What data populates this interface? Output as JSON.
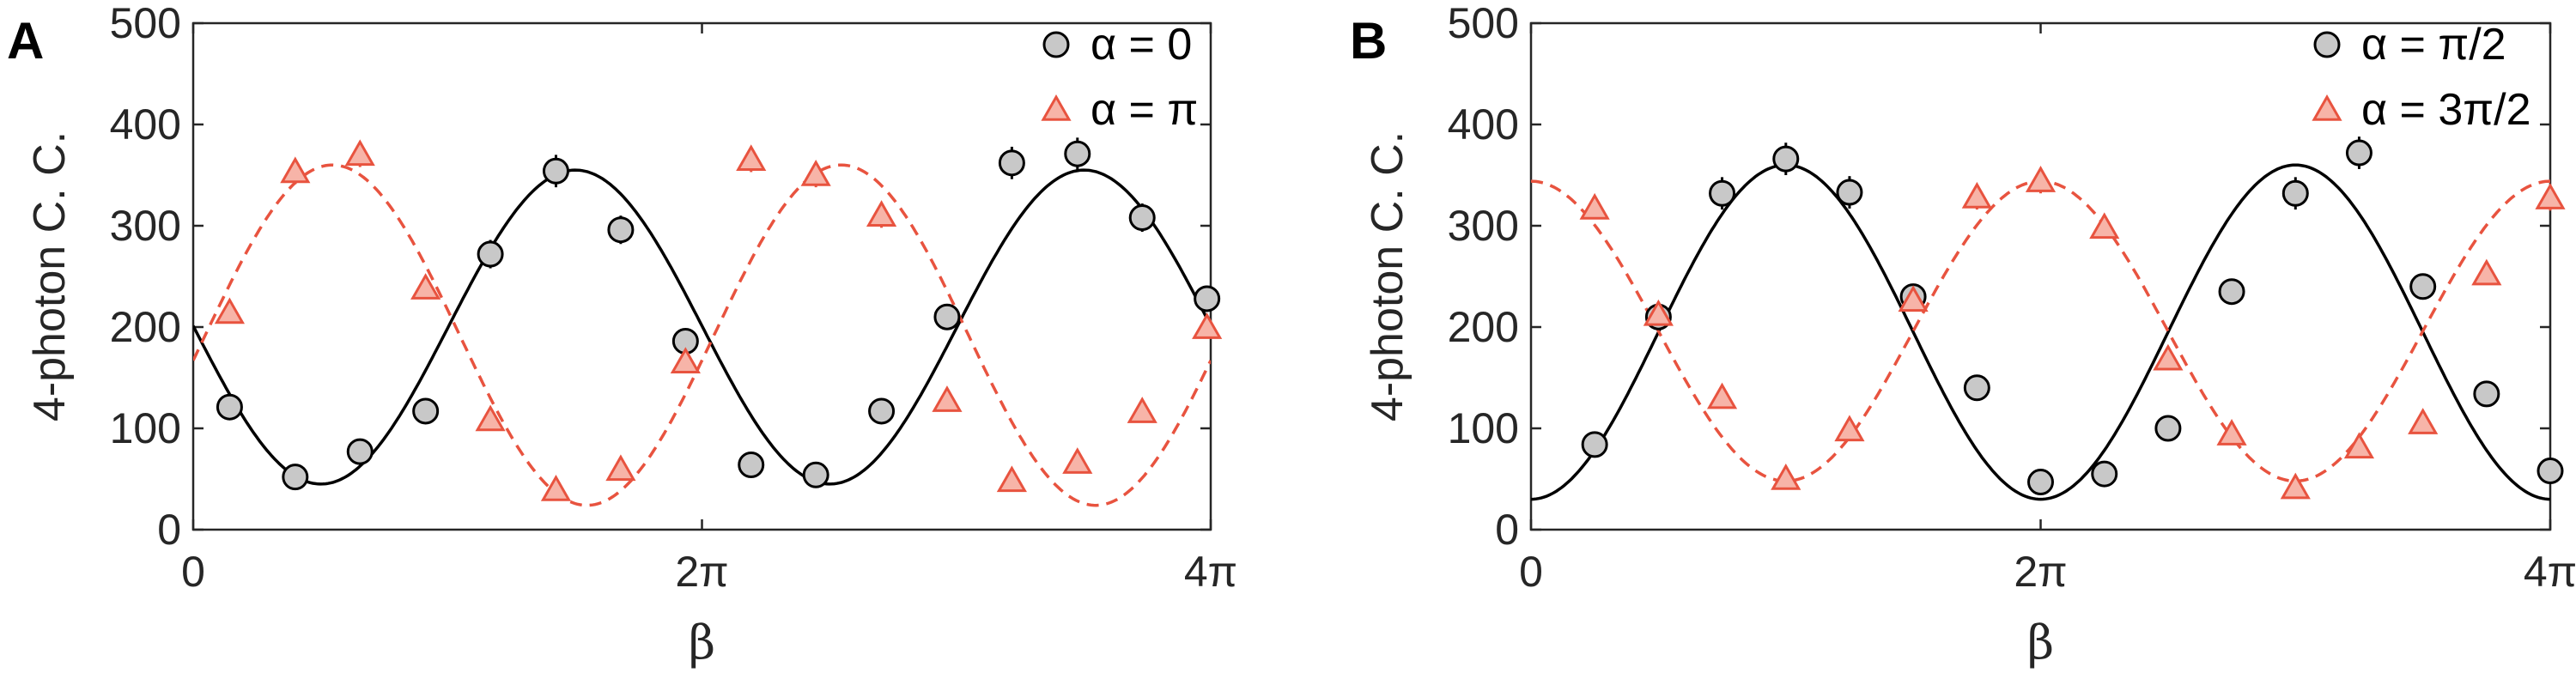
{
  "chart_data": [
    {
      "panel": "A",
      "type": "scatter",
      "ylabel": "4-photon C. C.",
      "xlabel": "β",
      "xlim": [
        0,
        12.566
      ],
      "ylim": [
        0,
        500
      ],
      "xticks": [
        0,
        6.2832,
        12.566
      ],
      "xtick_labels": [
        "0",
        "2π",
        "4π"
      ],
      "yticks": [
        0,
        100,
        200,
        300,
        400,
        500
      ],
      "ytick_labels": [
        "0",
        "100",
        "200",
        "300",
        "400",
        "500"
      ],
      "legend_position": "top-right",
      "series": [
        {
          "name": "α = 0",
          "marker": "circle",
          "color": "#000000",
          "fill": "#c8c8c8",
          "x": [
            0.45,
            1.26,
            2.06,
            2.87,
            3.67,
            4.48,
            5.28,
            6.08,
            6.89,
            7.69,
            8.5,
            9.31,
            10.11,
            10.92,
            11.72,
            12.52
          ],
          "y": [
            121,
            52,
            77,
            117,
            272,
            354,
            296,
            186,
            64,
            54,
            117,
            210,
            362,
            371,
            308,
            228
          ],
          "err": [
            10,
            10,
            10,
            12,
            14,
            16,
            14,
            12,
            10,
            10,
            12,
            12,
            16,
            16,
            14,
            12
          ],
          "fit": {
            "style": "solid",
            "color": "#000000",
            "mean": 200,
            "amplitude": 155,
            "period": 6.2832,
            "peak_at": 4.72
          }
        },
        {
          "name": "α = π",
          "marker": "triangle",
          "color": "#e8533f",
          "fill": "#f7b4a8",
          "x": [
            0.45,
            1.26,
            2.06,
            2.87,
            3.67,
            4.48,
            5.28,
            6.08,
            6.89,
            7.69,
            8.5,
            9.31,
            10.11,
            10.92,
            11.72,
            12.52
          ],
          "y": [
            214,
            353,
            370,
            238,
            108,
            39,
            59,
            165,
            365,
            350,
            310,
            127,
            48,
            66,
            116,
            199
          ],
          "err": [
            10,
            12,
            12,
            10,
            8,
            6,
            6,
            10,
            12,
            12,
            12,
            8,
            6,
            6,
            8,
            10
          ],
          "fit": {
            "style": "dashed",
            "color": "#e8533f",
            "mean": 192,
            "amplitude": 168,
            "period": 6.2832,
            "peak_at": 1.72
          }
        }
      ]
    },
    {
      "panel": "B",
      "type": "scatter",
      "ylabel": "4-photon C. C.",
      "xlabel": "β",
      "xlim": [
        0,
        12.566
      ],
      "ylim": [
        0,
        500
      ],
      "xticks": [
        0,
        6.2832,
        12.566
      ],
      "xtick_labels": [
        "0",
        "2π",
        "4π"
      ],
      "yticks": [
        0,
        100,
        200,
        300,
        400,
        500
      ],
      "ytick_labels": [
        "0",
        "100",
        "200",
        "300",
        "400",
        "500"
      ],
      "legend_position": "top-right",
      "series": [
        {
          "name": "α = π/2",
          "marker": "circle",
          "color": "#000000",
          "fill": "#c8c8c8",
          "x": [
            0.785,
            1.571,
            2.356,
            3.142,
            3.927,
            4.712,
            5.498,
            6.283,
            7.069,
            7.854,
            8.639,
            9.425,
            10.21,
            10.996,
            11.781,
            12.566
          ],
          "y": [
            84,
            210,
            332,
            366,
            333,
            230,
            140,
            47,
            55,
            100,
            235,
            332,
            372,
            240,
            134,
            58
          ],
          "err": [
            10,
            12,
            16,
            16,
            16,
            12,
            10,
            8,
            8,
            10,
            12,
            16,
            16,
            12,
            10,
            8
          ],
          "fit": {
            "style": "solid",
            "color": "#000000",
            "mean": 195,
            "amplitude": 165,
            "period": 6.2832,
            "peak_at": 3.142
          }
        },
        {
          "name": "α = 3π/2",
          "marker": "triangle",
          "color": "#e8533f",
          "fill": "#f7b4a8",
          "x": [
            0.785,
            1.571,
            2.356,
            3.142,
            3.927,
            4.712,
            5.498,
            6.283,
            7.069,
            7.854,
            8.639,
            9.425,
            10.21,
            10.996,
            11.781,
            12.566
          ],
          "y": [
            317,
            212,
            130,
            50,
            98,
            226,
            328,
            344,
            298,
            168,
            94,
            41,
            81,
            105,
            252,
            327
          ],
          "err": [
            10,
            10,
            8,
            6,
            8,
            10,
            12,
            12,
            10,
            8,
            8,
            6,
            8,
            8,
            10,
            12
          ],
          "fit": {
            "style": "dashed",
            "color": "#e8533f",
            "mean": 196,
            "amplitude": 148,
            "period": 6.2832,
            "peak_at": 6.283
          }
        }
      ]
    }
  ],
  "colors": {
    "axis": "#262626",
    "circle_edge": "#000000",
    "circle_fill": "#c8c8c8",
    "triangle_edge": "#e8533f",
    "triangle_fill": "#f7b4a8"
  }
}
